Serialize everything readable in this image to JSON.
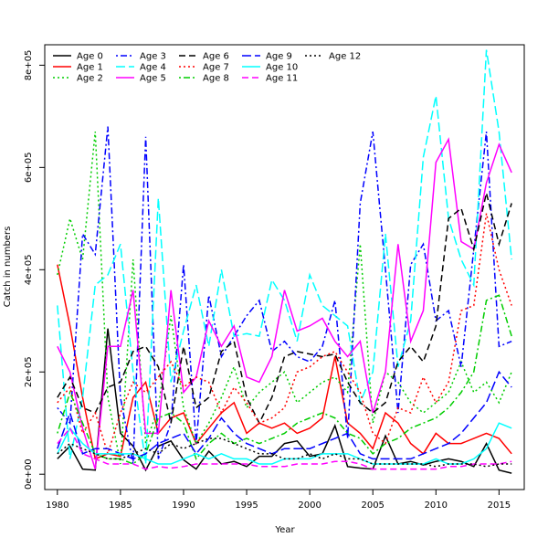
{
  "chart_data": {
    "type": "line",
    "xlabel": "Year",
    "ylabel": "Catch in numbers",
    "xlim": [
      1979,
      2017
    ],
    "ylim": [
      -30000,
      840000
    ],
    "x_ticks": [
      1980,
      1985,
      1990,
      1995,
      2000,
      2005,
      2010,
      2015
    ],
    "x_tick_labels": [
      "1980",
      "1985",
      "1990",
      "1995",
      "2000",
      "2005",
      "2010",
      "2015"
    ],
    "y_ticks": [
      0,
      200000,
      400000,
      600000,
      800000
    ],
    "y_tick_labels": [
      "0e+00",
      "2e+05",
      "4e+05",
      "6e+05",
      "8e+05"
    ],
    "grid": false,
    "legend_position": "top-left",
    "x": [
      1980,
      1981,
      1982,
      1983,
      1984,
      1985,
      1986,
      1987,
      1988,
      1989,
      1990,
      1991,
      1992,
      1993,
      1994,
      1995,
      1996,
      1997,
      1998,
      1999,
      2000,
      2001,
      2002,
      2003,
      2004,
      2005,
      2006,
      2007,
      2008,
      2009,
      2010,
      2011,
      2012,
      2013,
      2014,
      2015,
      2016
    ],
    "series": [
      {
        "name": "Age 0",
        "color": "#000000",
        "dash": "solid",
        "values": [
          30000,
          55000,
          10000,
          8000,
          285000,
          80000,
          55000,
          8000,
          55000,
          65000,
          28000,
          10000,
          45000,
          20000,
          25000,
          15000,
          35000,
          35000,
          60000,
          65000,
          35000,
          40000,
          95000,
          15000,
          12000,
          10000,
          75000,
          20000,
          25000,
          18000,
          25000,
          30000,
          25000,
          15000,
          60000,
          8000,
          2000
        ]
      },
      {
        "name": "Age 1",
        "color": "#ff0000",
        "dash": "long",
        "values": [
          410000,
          290000,
          150000,
          30000,
          40000,
          35000,
          150000,
          180000,
          80000,
          110000,
          120000,
          60000,
          90000,
          120000,
          140000,
          80000,
          100000,
          90000,
          100000,
          80000,
          90000,
          110000,
          230000,
          100000,
          80000,
          50000,
          120000,
          100000,
          60000,
          40000,
          80000,
          60000,
          60000,
          70000,
          80000,
          70000,
          40000
        ]
      },
      {
        "name": "Age 2",
        "color": "#00cd00",
        "dash": "dot",
        "values": [
          390000,
          500000,
          420000,
          670000,
          150000,
          20000,
          420000,
          60000,
          130000,
          310000,
          130000,
          60000,
          100000,
          150000,
          210000,
          130000,
          160000,
          180000,
          200000,
          140000,
          160000,
          180000,
          190000,
          160000,
          450000,
          100000,
          200000,
          180000,
          140000,
          120000,
          140000,
          160000,
          220000,
          160000,
          180000,
          140000,
          200000
        ]
      },
      {
        "name": "Age 3",
        "color": "#0000ff",
        "dash": "dotdash",
        "values": [
          130000,
          100000,
          470000,
          430000,
          680000,
          150000,
          20000,
          660000,
          30000,
          100000,
          410000,
          60000,
          350000,
          230000,
          270000,
          310000,
          340000,
          240000,
          260000,
          230000,
          220000,
          250000,
          340000,
          70000,
          530000,
          670000,
          400000,
          120000,
          410000,
          450000,
          300000,
          320000,
          210000,
          440000,
          670000,
          250000,
          260000
        ]
      },
      {
        "name": "Age 4",
        "color": "#00ffff",
        "dash": "longdash",
        "values": [
          330000,
          30000,
          150000,
          370000,
          390000,
          450000,
          200000,
          20000,
          540000,
          180000,
          280000,
          370000,
          250000,
          400000,
          270000,
          275000,
          270000,
          380000,
          340000,
          260000,
          390000,
          330000,
          310000,
          290000,
          140000,
          200000,
          470000,
          210000,
          300000,
          620000,
          740000,
          500000,
          420000,
          370000,
          830000,
          670000,
          420000
        ]
      },
      {
        "name": "Age 5",
        "color": "#ff00ff",
        "dash": "solid",
        "values": [
          250000,
          200000,
          90000,
          10000,
          250000,
          250000,
          360000,
          80000,
          80000,
          360000,
          160000,
          190000,
          300000,
          250000,
          290000,
          190000,
          180000,
          230000,
          360000,
          280000,
          290000,
          305000,
          260000,
          230000,
          260000,
          120000,
          200000,
          450000,
          260000,
          320000,
          610000,
          655000,
          455000,
          440000,
          570000,
          645000,
          590000
        ]
      },
      {
        "name": "Age 6",
        "color": "#000000",
        "dash": "dash",
        "values": [
          150000,
          190000,
          130000,
          120000,
          170000,
          180000,
          240000,
          250000,
          210000,
          100000,
          250000,
          130000,
          150000,
          240000,
          260000,
          150000,
          100000,
          150000,
          230000,
          240000,
          235000,
          230000,
          235000,
          180000,
          140000,
          120000,
          140000,
          220000,
          250000,
          220000,
          290000,
          500000,
          520000,
          440000,
          550000,
          450000,
          530000
        ]
      },
      {
        "name": "Age 7",
        "color": "#ff0000",
        "dash": "dot",
        "values": [
          140000,
          170000,
          80000,
          120000,
          40000,
          120000,
          180000,
          160000,
          190000,
          220000,
          170000,
          190000,
          180000,
          120000,
          170000,
          140000,
          100000,
          110000,
          130000,
          200000,
          210000,
          230000,
          240000,
          200000,
          160000,
          80000,
          60000,
          130000,
          120000,
          190000,
          140000,
          180000,
          320000,
          330000,
          510000,
          400000,
          330000
        ]
      },
      {
        "name": "Age 8",
        "color": "#00cd00",
        "dash": "dotdash",
        "values": [
          80000,
          160000,
          100000,
          40000,
          30000,
          30000,
          20000,
          40000,
          110000,
          120000,
          100000,
          30000,
          60000,
          80000,
          60000,
          70000,
          60000,
          70000,
          80000,
          100000,
          110000,
          120000,
          110000,
          80000,
          70000,
          40000,
          60000,
          70000,
          90000,
          100000,
          110000,
          130000,
          160000,
          200000,
          340000,
          350000,
          270000
        ]
      },
      {
        "name": "Age 9",
        "color": "#0000ff",
        "dash": "longdash",
        "values": [
          50000,
          120000,
          40000,
          50000,
          50000,
          40000,
          30000,
          40000,
          60000,
          70000,
          80000,
          40000,
          70000,
          110000,
          80000,
          60000,
          50000,
          40000,
          50000,
          50000,
          50000,
          60000,
          70000,
          80000,
          40000,
          30000,
          30000,
          30000,
          30000,
          40000,
          50000,
          60000,
          80000,
          110000,
          140000,
          200000,
          170000
        ]
      },
      {
        "name": "Age 10",
        "color": "#00ffff",
        "dash": "solid",
        "values": [
          40000,
          90000,
          60000,
          40000,
          40000,
          40000,
          40000,
          30000,
          20000,
          20000,
          30000,
          40000,
          30000,
          40000,
          30000,
          30000,
          20000,
          20000,
          30000,
          30000,
          30000,
          40000,
          40000,
          40000,
          30000,
          20000,
          20000,
          20000,
          20000,
          20000,
          30000,
          20000,
          20000,
          30000,
          50000,
          100000,
          90000
        ]
      },
      {
        "name": "Age 11",
        "color": "#ff00ff",
        "dash": "dash",
        "values": [
          60000,
          90000,
          40000,
          30000,
          20000,
          20000,
          20000,
          10000,
          15000,
          12000,
          15000,
          20000,
          20000,
          20000,
          20000,
          20000,
          15000,
          15000,
          15000,
          20000,
          20000,
          20000,
          25000,
          25000,
          20000,
          10000,
          10000,
          10000,
          10000,
          10000,
          10000,
          15000,
          15000,
          20000,
          20000,
          20000,
          25000
        ]
      },
      {
        "name": "Age 12",
        "color": "#000000",
        "dash": "dot",
        "values": [
          40000,
          60000,
          50000,
          40000,
          30000,
          30000,
          40000,
          50000,
          40000,
          60000,
          50000,
          60000,
          70000,
          70000,
          60000,
          50000,
          40000,
          40000,
          30000,
          30000,
          40000,
          30000,
          40000,
          30000,
          30000,
          20000,
          20000,
          20000,
          20000,
          20000,
          15000,
          20000,
          20000,
          20000,
          15000,
          20000,
          20000
        ]
      }
    ]
  }
}
